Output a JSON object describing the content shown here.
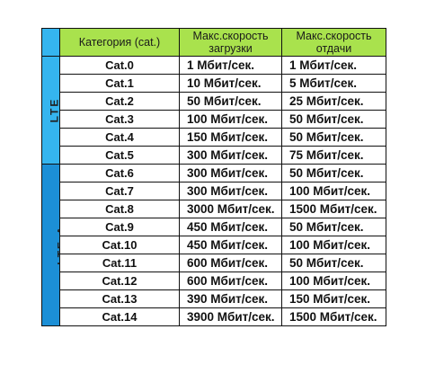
{
  "table": {
    "headers": {
      "category": "Категория (cat.)",
      "download": "Макс.скорость загрузки",
      "upload": "Макс.скорость отдачи"
    },
    "groups": {
      "lte": "LTE",
      "lte_a": "LTE-A"
    },
    "rows": [
      {
        "cat": "Cat.0",
        "down": "1 Мбит/сек.",
        "up": "1 Мбит/сек."
      },
      {
        "cat": "Cat.1",
        "down": "10 Мбит/сек.",
        "up": "5 Мбит/сек."
      },
      {
        "cat": "Cat.2",
        "down": "50 Мбит/сек.",
        "up": "25 Мбит/сек."
      },
      {
        "cat": "Cat.3",
        "down": "100 Мбит/сек.",
        "up": "50 Мбит/сек."
      },
      {
        "cat": "Cat.4",
        "down": "150 Мбит/сек.",
        "up": "50 Мбит/сек."
      },
      {
        "cat": "Cat.5",
        "down": "300 Мбит/сек.",
        "up": "75 Мбит/сек."
      },
      {
        "cat": "Cat.6",
        "down": "300 Мбит/сек.",
        "up": "50 Мбит/сек."
      },
      {
        "cat": "Cat.7",
        "down": "300 Мбит/сек.",
        "up": "100 Мбит/сек."
      },
      {
        "cat": "Cat.8",
        "down": "3000 Мбит/сек.",
        "up": "1500 Мбит/сек."
      },
      {
        "cat": "Cat.9",
        "down": "450 Мбит/сек.",
        "up": "50 Мбит/сек."
      },
      {
        "cat": "Cat.10",
        "down": "450 Мбит/сек.",
        "up": "100 Мбит/сек."
      },
      {
        "cat": "Cat.11",
        "down": "600 Мбит/сек.",
        "up": "50 Мбит/сек."
      },
      {
        "cat": "Cat.12",
        "down": "600 Мбит/сек.",
        "up": "100 Мбит/сек."
      },
      {
        "cat": "Cat.13",
        "down": "390 Мбит/сек.",
        "up": "150 Мбит/сек."
      },
      {
        "cat": "Cat.14",
        "down": "3900 Мбит/сек.",
        "up": "1500 Мбит/сек."
      }
    ]
  },
  "colors": {
    "header_bg": "#a9e24d",
    "group_bg": "#29a9ea"
  }
}
